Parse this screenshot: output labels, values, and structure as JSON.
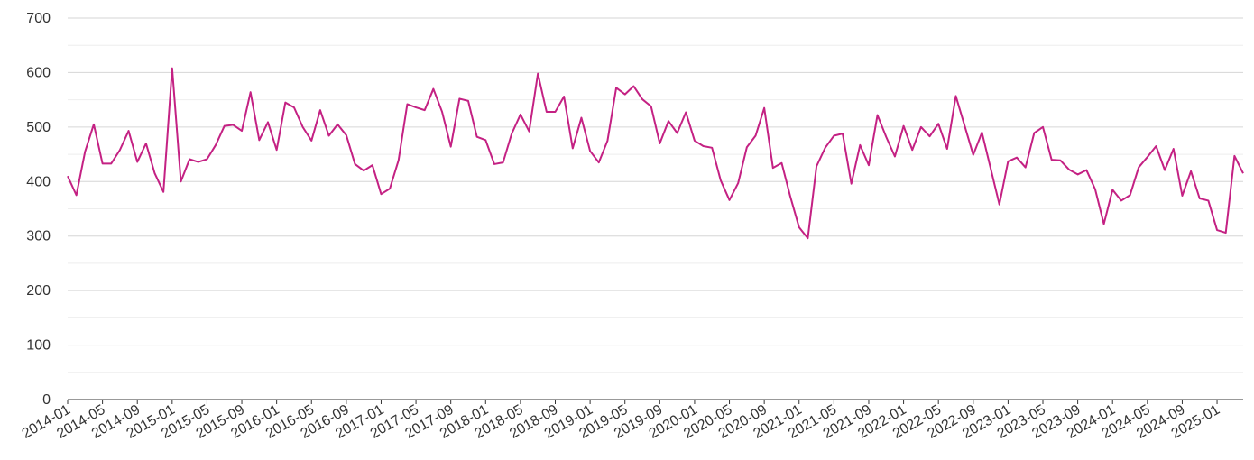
{
  "chart_data": {
    "type": "line",
    "title": "",
    "xlabel": "",
    "ylabel": "",
    "ylim": [
      0,
      700
    ],
    "y_ticks": [
      0,
      100,
      200,
      300,
      400,
      500,
      600,
      700
    ],
    "grid": true,
    "x_tick_labels": [
      "2014-01",
      "2014-05",
      "2014-09",
      "2015-01",
      "2015-05",
      "2015-09",
      "2016-01",
      "2016-05",
      "2016-09",
      "2017-01",
      "2017-05",
      "2017-09",
      "2018-01",
      "2018-05",
      "2018-09",
      "2019-01",
      "2019-05",
      "2019-09",
      "2020-01",
      "2020-05",
      "2020-09",
      "2021-01",
      "2021-05",
      "2021-09",
      "2022-01",
      "2022-05",
      "2022-09",
      "2023-01",
      "2023-05",
      "2023-09",
      "2024-01",
      "2024-05",
      "2024-09",
      "2025-01"
    ],
    "x_start": "2014-01",
    "series": [
      {
        "color": "#c42183",
        "values": [
          410,
          375,
          455,
          505,
          433,
          433,
          458,
          493,
          436,
          470,
          415,
          381,
          608,
          400,
          441,
          436,
          441,
          467,
          502,
          504,
          493,
          564,
          476,
          509,
          458,
          545,
          536,
          500,
          475,
          531,
          484,
          505,
          485,
          432,
          420,
          430,
          377,
          387,
          439,
          542,
          536,
          531,
          570,
          528,
          464,
          552,
          548,
          482,
          476,
          432,
          435,
          488,
          523,
          492,
          598,
          528,
          528,
          556,
          461,
          517,
          456,
          435,
          475,
          572,
          560,
          575,
          551,
          538,
          470,
          511,
          489,
          527,
          475,
          465,
          462,
          402,
          366,
          397,
          463,
          484,
          535,
          425,
          434,
          372,
          316,
          296,
          428,
          462,
          484,
          488,
          396,
          467,
          430,
          522,
          482,
          446,
          502,
          458,
          500,
          483,
          506,
          460,
          557,
          503,
          449,
          490,
          424,
          358,
          437,
          444,
          426,
          489,
          500,
          440,
          439,
          422,
          413,
          421,
          386,
          322,
          385,
          365,
          375,
          426,
          445,
          465,
          421,
          460,
          374,
          419,
          369,
          365,
          311,
          306,
          447,
          415
        ]
      }
    ]
  }
}
